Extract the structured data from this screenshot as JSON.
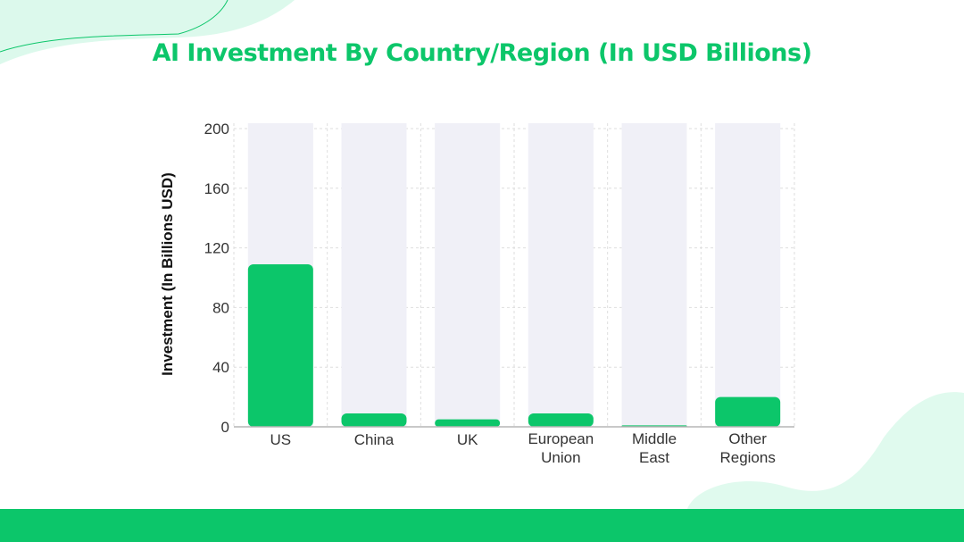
{
  "colors": {
    "accent": "#0cc66a",
    "bar_track": "#f0f0f7",
    "decor_mint": "#dcf9ec"
  },
  "chart_data": {
    "type": "bar",
    "title": "AI Investment By Country/Region (In USD Billions)",
    "xlabel": "",
    "ylabel": "Investment (In Billions USD)",
    "categories": [
      [
        "US"
      ],
      [
        "China"
      ],
      [
        "UK"
      ],
      [
        "European",
        "Union"
      ],
      [
        "Middle",
        "East"
      ],
      [
        "Other",
        "Regions"
      ]
    ],
    "values": [
      109,
      9,
      5,
      9,
      1,
      20
    ],
    "ylim": [
      0,
      200
    ],
    "yticks": [
      "0",
      "40",
      "80",
      "120",
      "160",
      "200"
    ],
    "grid": true,
    "legend": "none"
  }
}
